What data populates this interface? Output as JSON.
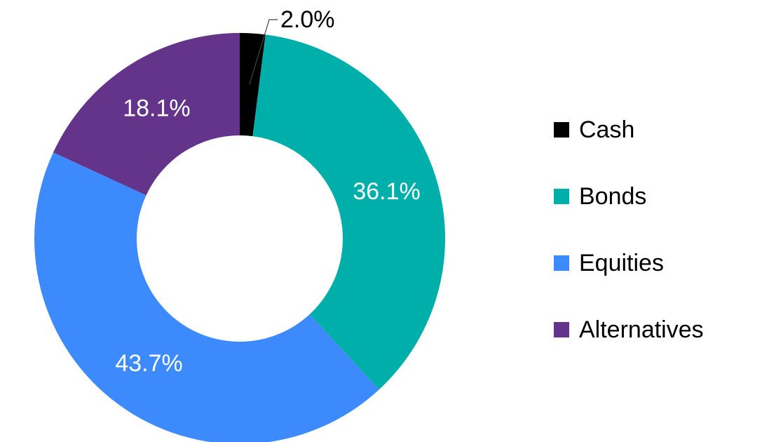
{
  "chart_data": {
    "type": "pie",
    "categories": [
      "Cash",
      "Bonds",
      "Equities",
      "Alternatives"
    ],
    "values": [
      2,
      36.1,
      43.7,
      18.1
    ],
    "value_labels": [
      "2.0%",
      "36.1%",
      "43.7%",
      "18.1%"
    ],
    "colors": [
      "#000000",
      "#00afa9",
      "#3d8afd",
      "#64338a"
    ],
    "donut": true,
    "legend": "right"
  }
}
